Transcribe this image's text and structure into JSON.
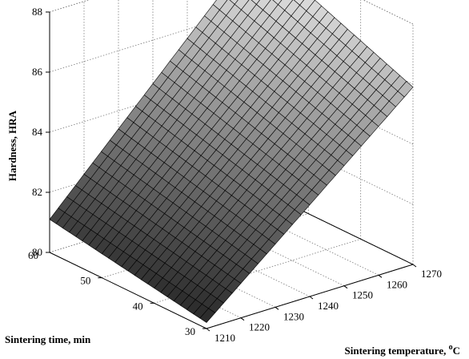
{
  "chart_data": {
    "type": "surface",
    "xlabel": "Sintering temperature, ",
    "xlabel_sup": "o",
    "xlabel_unit": "C",
    "ylabel": "Sintering time, min",
    "zlabel": "Hardness, HRA",
    "xlim": [
      1210,
      1270
    ],
    "ylim": [
      30,
      60
    ],
    "zlim": [
      80,
      88
    ],
    "x_ticks": [
      "1210",
      "1220",
      "1230",
      "1240",
      "1250",
      "1260",
      "1270"
    ],
    "y_ticks": [
      "30",
      "40",
      "50",
      "60"
    ],
    "z_ticks": [
      "80",
      "82",
      "84",
      "86",
      "88"
    ],
    "grid": true,
    "colormap": "gray",
    "mesh_divisions_x": 24,
    "mesh_divisions_y": 24,
    "surface_points": [
      {
        "x": 1210,
        "y": 30,
        "z": 80.2
      },
      {
        "x": 1210,
        "y": 60,
        "z": 81.1
      },
      {
        "x": 1270,
        "y": 30,
        "z": 85.9
      },
      {
        "x": 1270,
        "y": 60,
        "z": 88.0
      }
    ]
  }
}
